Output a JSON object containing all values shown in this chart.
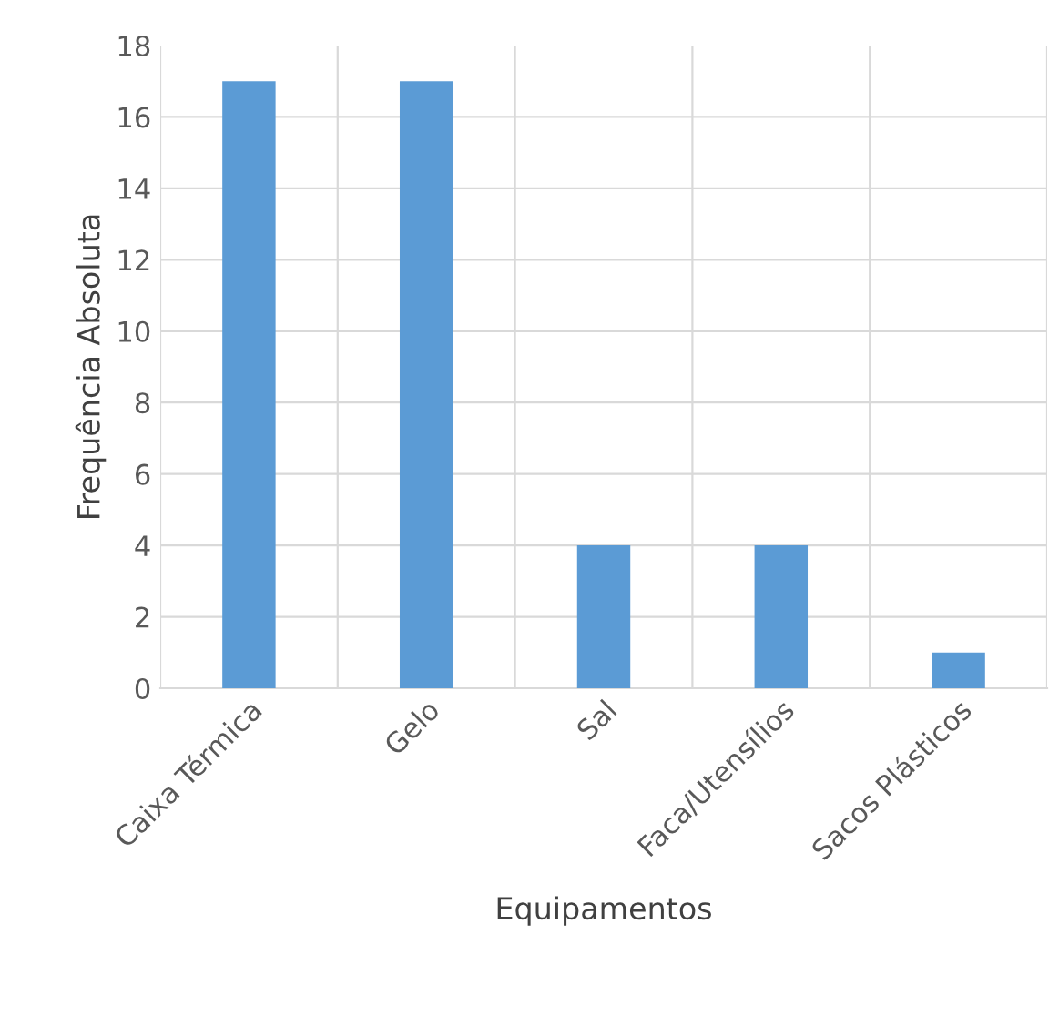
{
  "chart_data": {
    "type": "bar",
    "xlabel": "Equipamentos",
    "ylabel": "Frequência Absoluta",
    "categories": [
      "Caixa Térmica",
      "Gelo",
      "Sal",
      "Faca/Utensílios",
      "Sacos Plásticos"
    ],
    "values": [
      17,
      17,
      4,
      4,
      1
    ],
    "color": "#5b9bd5",
    "ylim": [
      0,
      18
    ],
    "yticks": [
      0,
      2,
      4,
      6,
      8,
      10,
      12,
      14,
      16,
      18
    ],
    "grid": true
  }
}
